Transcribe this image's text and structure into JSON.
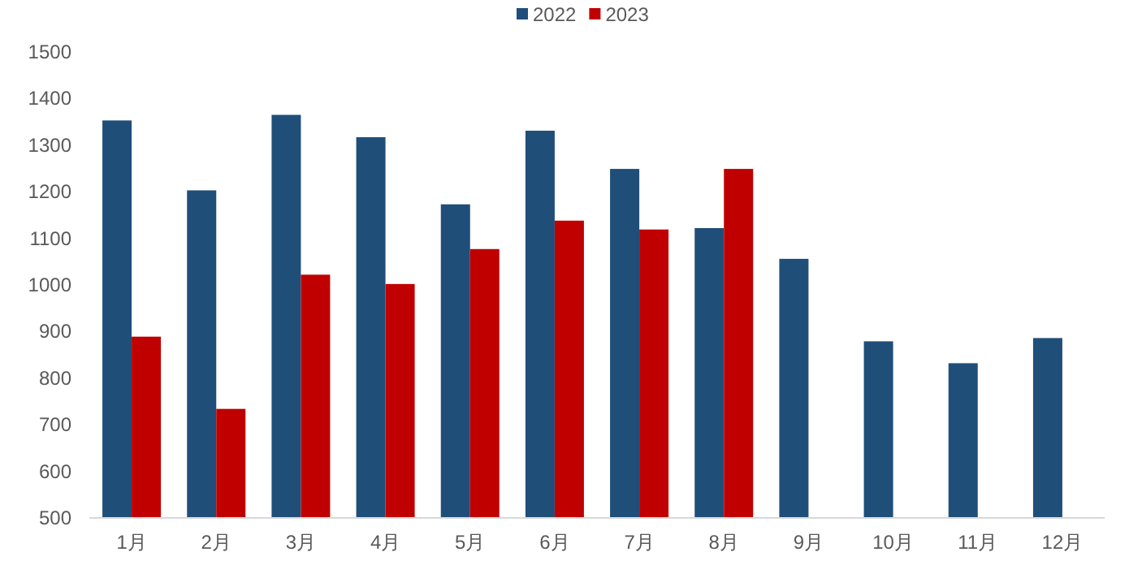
{
  "chart_data": {
    "type": "bar",
    "categories": [
      "1月",
      "2月",
      "3月",
      "4月",
      "5月",
      "6月",
      "7月",
      "8月",
      "9月",
      "10月",
      "11月",
      "12月"
    ],
    "series": [
      {
        "name": "2022",
        "color": "#1f4e79",
        "values": [
          1353,
          1203,
          1365,
          1317,
          1173,
          1331,
          1249,
          1122,
          1056,
          879,
          832,
          886
        ]
      },
      {
        "name": "2023",
        "color": "#c00000",
        "values": [
          889,
          734,
          1022,
          1002,
          1077,
          1138,
          1119,
          1249,
          null,
          null,
          null,
          null
        ]
      }
    ],
    "ylim": [
      500,
      1500
    ],
    "yticks": [
      500,
      600,
      700,
      800,
      900,
      1000,
      1100,
      1200,
      1300,
      1400,
      1500
    ],
    "grid": false,
    "legend": "top"
  }
}
